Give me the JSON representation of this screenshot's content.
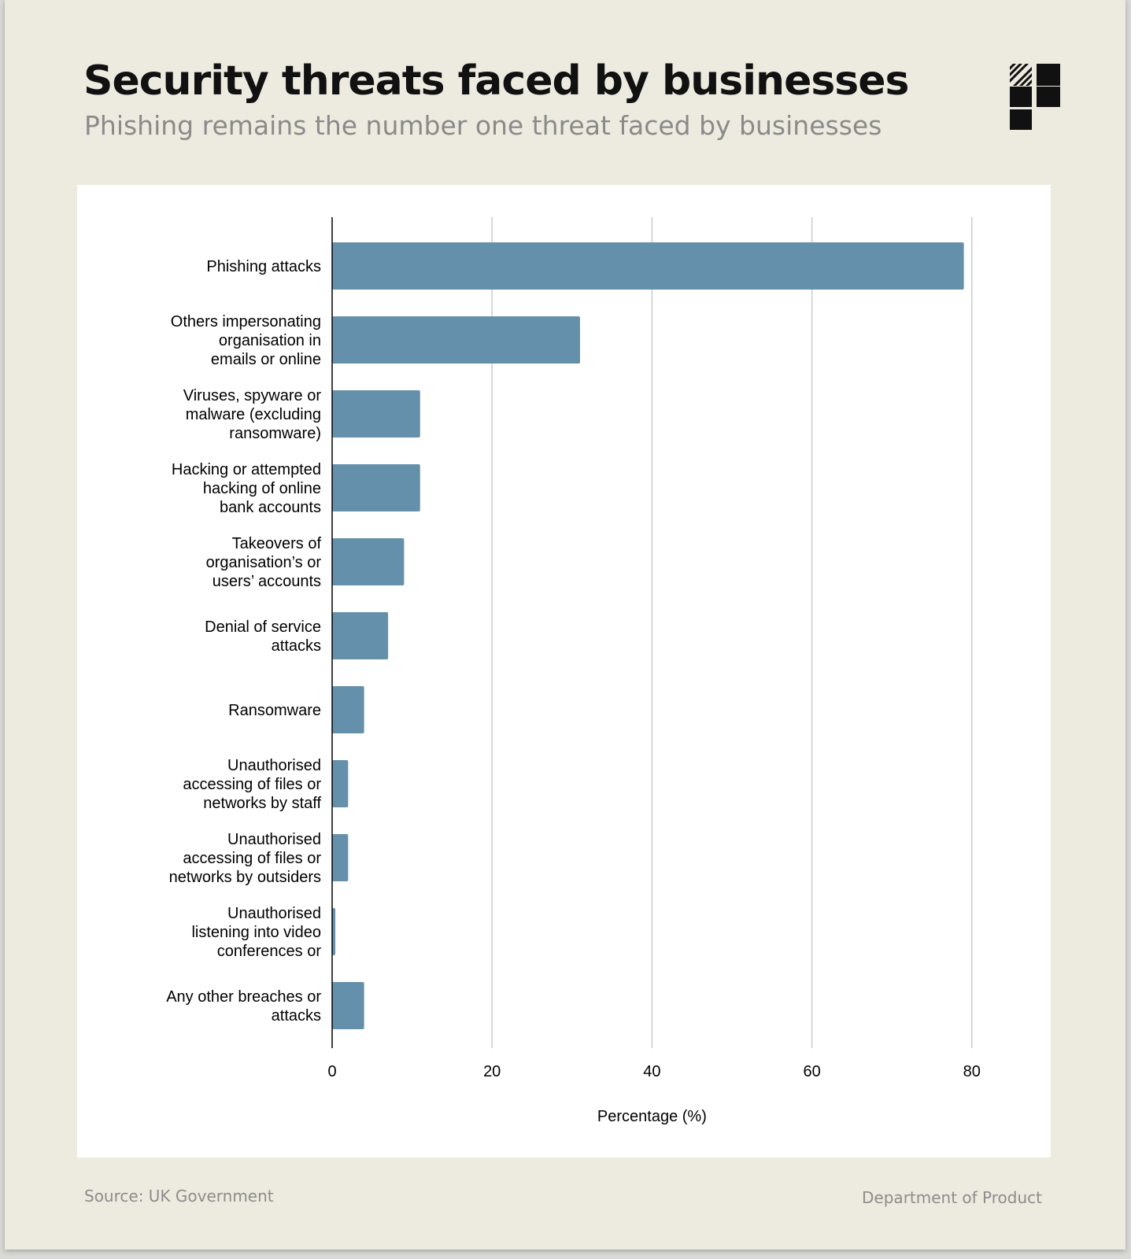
{
  "header": {
    "title": "Security threats faced by businesses",
    "subtitle": "Phishing remains the number one threat faced by businesses"
  },
  "logo": {
    "icon": "department-of-product-logo-icon"
  },
  "footer": {
    "source": "Source: UK Government",
    "brand": "Department of Product"
  },
  "colors": {
    "background": "#edebe0",
    "panel": "#ffffff",
    "bar": "#6590ab",
    "grid": "#cccccc"
  },
  "chart_data": {
    "type": "bar",
    "orientation": "horizontal",
    "categories": [
      [
        "Phishing attacks"
      ],
      [
        "Others impersonating",
        "organisation in",
        "emails or online"
      ],
      [
        "Viruses, spyware or",
        "malware (excluding",
        "ransomware)"
      ],
      [
        "Hacking or attempted",
        "hacking of online",
        "bank accounts"
      ],
      [
        "Takeovers of",
        "organisation’s or",
        "users’ accounts"
      ],
      [
        "Denial of service",
        "attacks"
      ],
      [
        "Ransomware"
      ],
      [
        "Unauthorised",
        "accessing of files or",
        "networks by staff"
      ],
      [
        "Unauthorised",
        "accessing of files or",
        "networks by outsiders"
      ],
      [
        "Unauthorised",
        "listening into video",
        "conferences or"
      ],
      [
        "Any other breaches or",
        "attacks"
      ]
    ],
    "values": [
      79,
      31,
      11,
      11,
      9,
      7,
      4,
      2,
      2,
      0.4,
      4
    ],
    "xlabel": "Percentage (%)",
    "ylabel": "",
    "xlim": [
      0,
      80
    ],
    "xticks": [
      0,
      20,
      40,
      60,
      80
    ],
    "grid": true
  }
}
